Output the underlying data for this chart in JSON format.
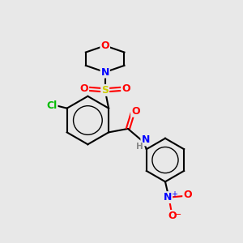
{
  "bg_color": "#e8e8e8",
  "atom_colors": {
    "C": "#000000",
    "N": "#0000ff",
    "O": "#ff0000",
    "S": "#cccc00",
    "Cl": "#00bb00",
    "H": "#888888"
  },
  "bond_color": "#000000",
  "bond_width": 1.5,
  "fig_size": [
    3.0,
    3.0
  ],
  "dpi": 100
}
